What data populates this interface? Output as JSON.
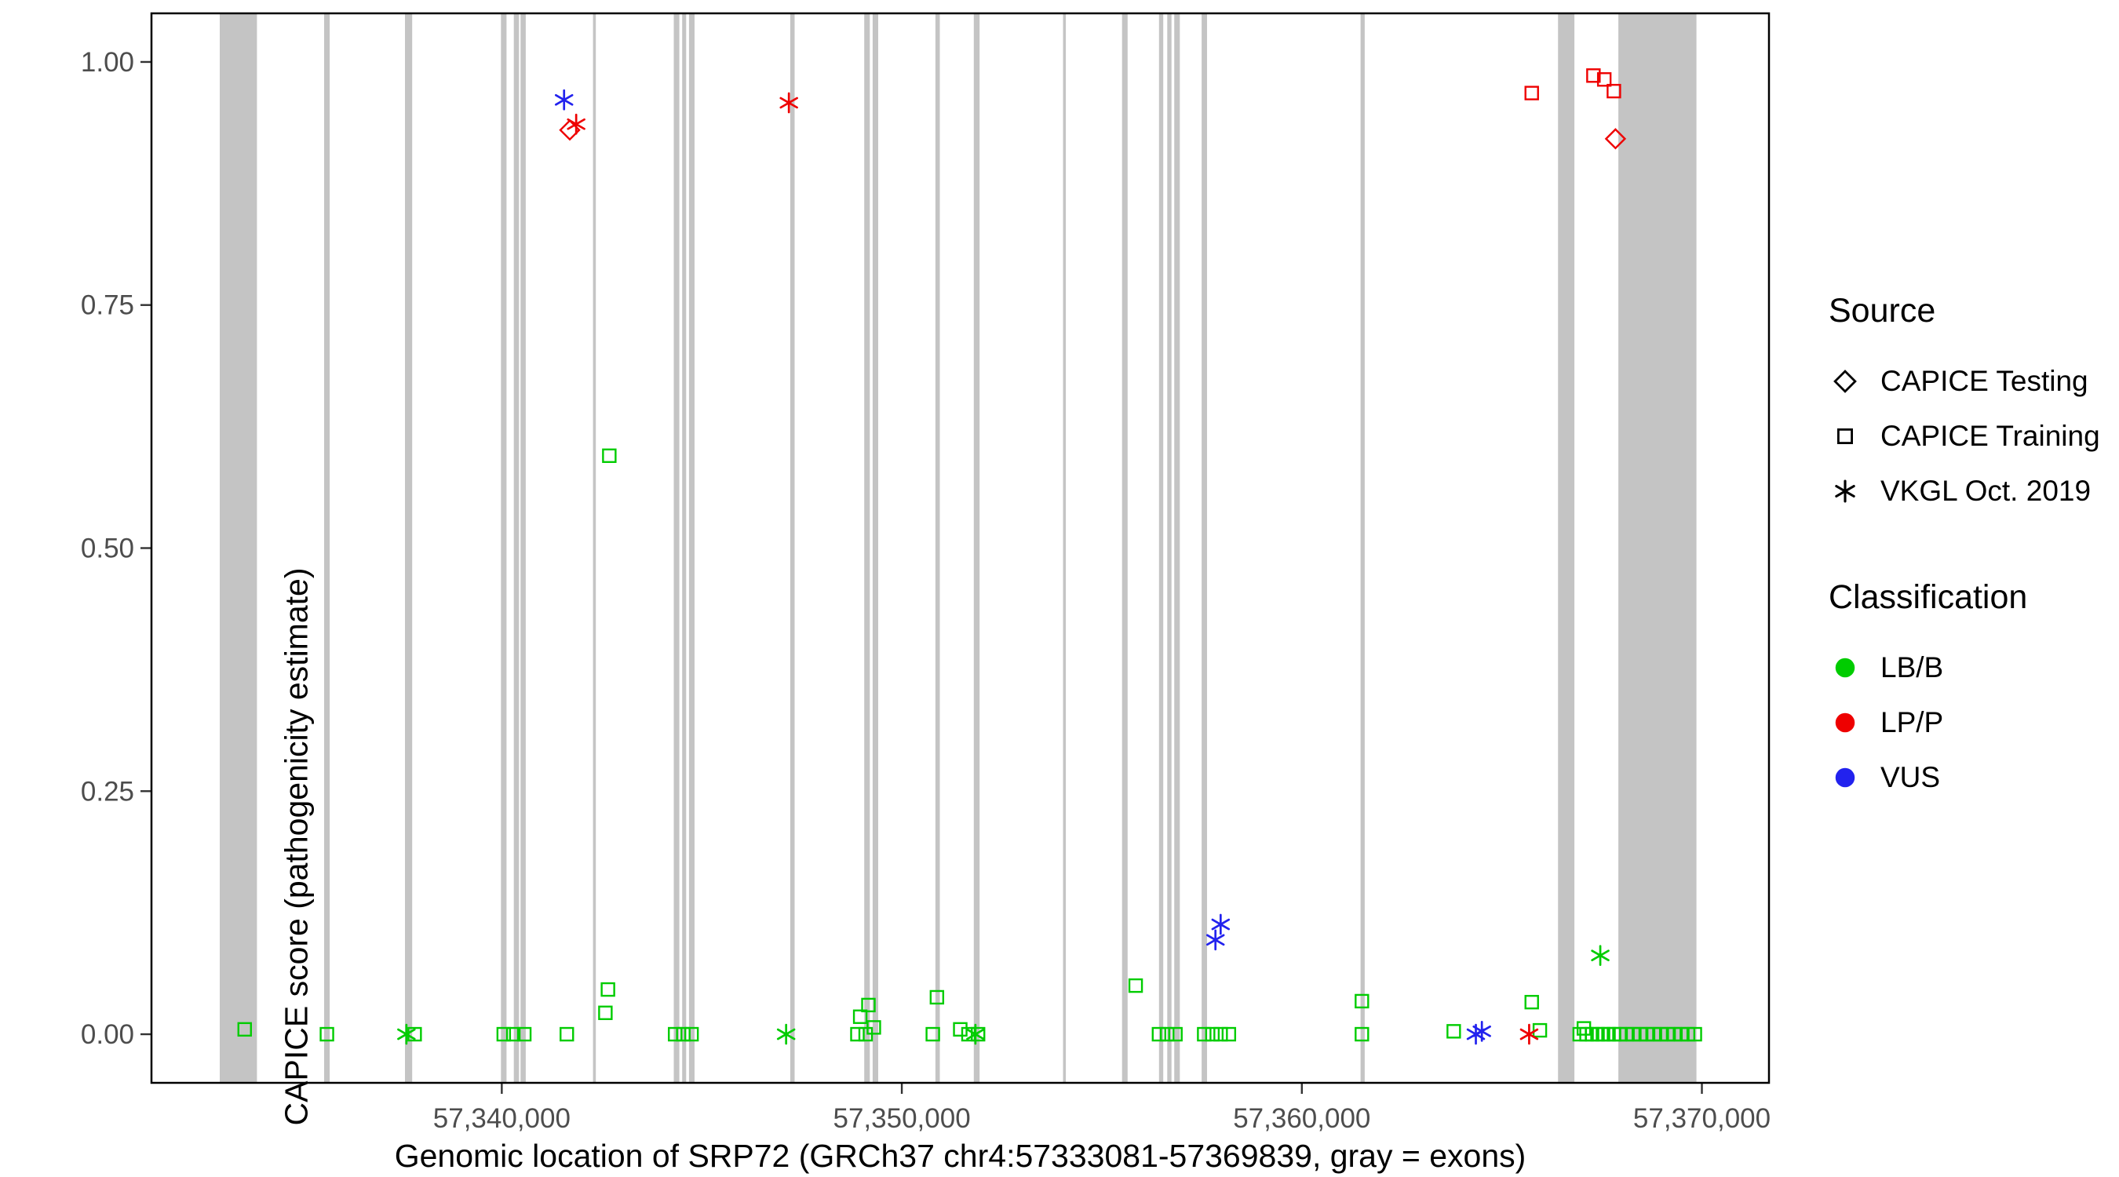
{
  "figure": {
    "background": "#ffffff",
    "legend": {
      "source_title": "Source",
      "source_items": [
        {
          "label": "CAPICE Testing",
          "shape": "diamond"
        },
        {
          "label": "CAPICE Training",
          "shape": "square"
        },
        {
          "label": "VKGL Oct. 2019",
          "shape": "asterisk"
        }
      ],
      "classification_title": "Classification",
      "classification_items": [
        {
          "label": "LB/B",
          "color": "#00cc00"
        },
        {
          "label": "LP/P",
          "color": "#ee0000"
        },
        {
          "label": "VUS",
          "color": "#2222ee"
        }
      ]
    }
  },
  "chart_data": {
    "type": "scatter",
    "title": "",
    "xlabel": "Genomic location of SRP72 (GRCh37 chr4:57333081-57369839, gray = exons)",
    "ylabel": "CAPICE score (pathogenicity estimate)",
    "x_domain": [
      57331243,
      57371677
    ],
    "y_domain": [
      -0.05,
      1.05
    ],
    "x_ticks": [
      {
        "value": 57340000,
        "label": "57,340,000"
      },
      {
        "value": 57350000,
        "label": "57,350,000"
      },
      {
        "value": 57360000,
        "label": "57,360,000"
      },
      {
        "value": 57370000,
        "label": "57,370,000"
      }
    ],
    "y_ticks": [
      {
        "value": 1.0,
        "label": "1.00"
      },
      {
        "value": 0.75,
        "label": "0.75"
      },
      {
        "value": 0.5,
        "label": "0.50"
      },
      {
        "value": 0.25,
        "label": "0.25"
      },
      {
        "value": 0.0,
        "label": "0.00"
      }
    ],
    "exon_color": "#c4c4c4",
    "grid": false,
    "legend_position": "right",
    "classification_colors": {
      "LB/B": "#00cc00",
      "LP/P": "#ee0000",
      "VUS": "#2222ee"
    },
    "source_shapes": {
      "CAPICE Testing": "diamond",
      "CAPICE Training": "square",
      "VKGL Oct. 2019": "asterisk"
    },
    "exons": [
      [
        57332950,
        57333880
      ],
      [
        57335560,
        57335700
      ],
      [
        57337580,
        57337760
      ],
      [
        57339980,
        57340120
      ],
      [
        57340300,
        57340430
      ],
      [
        57340470,
        57340600
      ],
      [
        57342280,
        57342350
      ],
      [
        57344300,
        57344440
      ],
      [
        57344510,
        57344610
      ],
      [
        57344680,
        57344820
      ],
      [
        57347210,
        57347320
      ],
      [
        57349060,
        57349200
      ],
      [
        57349270,
        57349410
      ],
      [
        57350840,
        57350950
      ],
      [
        57351800,
        57351945
      ],
      [
        57354030,
        57354100
      ],
      [
        57355505,
        57355645
      ],
      [
        57356430,
        57356535
      ],
      [
        57356635,
        57356740
      ],
      [
        57356810,
        57356950
      ],
      [
        57357495,
        57357630
      ],
      [
        57361467,
        57361570
      ],
      [
        57366404,
        57366815
      ],
      [
        57367912,
        57369865
      ]
    ],
    "points": [
      {
        "x": 57341557,
        "y": 0.961,
        "src": "VKGL Oct. 2019",
        "cls": "VUS"
      },
      {
        "x": 57341700,
        "y": 0.93,
        "src": "CAPICE Testing",
        "cls": "LP/P"
      },
      {
        "x": 57341860,
        "y": 0.936,
        "src": "VKGL Oct. 2019",
        "cls": "LP/P"
      },
      {
        "x": 57347177,
        "y": 0.958,
        "src": "VKGL Oct. 2019",
        "cls": "LP/P"
      },
      {
        "x": 57365747,
        "y": 0.968,
        "src": "CAPICE Training",
        "cls": "LP/P"
      },
      {
        "x": 57367289,
        "y": 0.986,
        "src": "CAPICE Training",
        "cls": "LP/P"
      },
      {
        "x": 57367560,
        "y": 0.982,
        "src": "CAPICE Training",
        "cls": "LP/P"
      },
      {
        "x": 57367800,
        "y": 0.97,
        "src": "CAPICE Training",
        "cls": "LP/P"
      },
      {
        "x": 57367840,
        "y": 0.921,
        "src": "CAPICE Testing",
        "cls": "LP/P"
      },
      {
        "x": 57342688,
        "y": 0.595,
        "src": "CAPICE Training",
        "cls": "LB/B"
      },
      {
        "x": 57357970,
        "y": 0.113,
        "src": "VKGL Oct. 2019",
        "cls": "VUS"
      },
      {
        "x": 57357840,
        "y": 0.097,
        "src": "VKGL Oct. 2019",
        "cls": "VUS"
      },
      {
        "x": 57367460,
        "y": 0.081,
        "src": "VKGL Oct. 2019",
        "cls": "LB/B"
      },
      {
        "x": 57355846,
        "y": 0.05,
        "src": "CAPICE Training",
        "cls": "LB/B"
      },
      {
        "x": 57342654,
        "y": 0.046,
        "src": "CAPICE Training",
        "cls": "LB/B"
      },
      {
        "x": 57342590,
        "y": 0.022,
        "src": "CAPICE Training",
        "cls": "LB/B"
      },
      {
        "x": 57349165,
        "y": 0.03,
        "src": "CAPICE Training",
        "cls": "LB/B"
      },
      {
        "x": 57348960,
        "y": 0.018,
        "src": "CAPICE Training",
        "cls": "LB/B"
      },
      {
        "x": 57350878,
        "y": 0.038,
        "src": "CAPICE Training",
        "cls": "LB/B"
      },
      {
        "x": 57361501,
        "y": 0.034,
        "src": "CAPICE Training",
        "cls": "LB/B"
      },
      {
        "x": 57365747,
        "y": 0.033,
        "src": "CAPICE Training",
        "cls": "LB/B"
      },
      {
        "x": 57333573,
        "y": 0.005,
        "src": "CAPICE Training",
        "cls": "LB/B"
      },
      {
        "x": 57349301,
        "y": 0.007,
        "src": "CAPICE Training",
        "cls": "LB/B"
      },
      {
        "x": 57351461,
        "y": 0.005,
        "src": "CAPICE Training",
        "cls": "LB/B"
      },
      {
        "x": 57363797,
        "y": 0.003,
        "src": "CAPICE Training",
        "cls": "LB/B"
      },
      {
        "x": 57367050,
        "y": 0.006,
        "src": "CAPICE Training",
        "cls": "LB/B"
      },
      {
        "x": 57335629,
        "y": 0.0,
        "src": "CAPICE Training",
        "cls": "LB/B"
      },
      {
        "x": 57337822,
        "y": 0.0,
        "src": "CAPICE Training",
        "cls": "LB/B"
      },
      {
        "x": 57340049,
        "y": 0.0,
        "src": "CAPICE Training",
        "cls": "LB/B"
      },
      {
        "x": 57340289,
        "y": 0.0,
        "src": "CAPICE Training",
        "cls": "LB/B"
      },
      {
        "x": 57340563,
        "y": 0.0,
        "src": "CAPICE Training",
        "cls": "LB/B"
      },
      {
        "x": 57341626,
        "y": 0.0,
        "src": "CAPICE Training",
        "cls": "LB/B"
      },
      {
        "x": 57344333,
        "y": 0.0,
        "src": "CAPICE Training",
        "cls": "LB/B"
      },
      {
        "x": 57344538,
        "y": 0.0,
        "src": "CAPICE Training",
        "cls": "LB/B"
      },
      {
        "x": 57344744,
        "y": 0.0,
        "src": "CAPICE Training",
        "cls": "LB/B"
      },
      {
        "x": 57348890,
        "y": 0.0,
        "src": "CAPICE Training",
        "cls": "LB/B"
      },
      {
        "x": 57349096,
        "y": 0.0,
        "src": "CAPICE Training",
        "cls": "LB/B"
      },
      {
        "x": 57350775,
        "y": 0.0,
        "src": "CAPICE Training",
        "cls": "LB/B"
      },
      {
        "x": 57351666,
        "y": 0.0,
        "src": "CAPICE Training",
        "cls": "LB/B"
      },
      {
        "x": 57351906,
        "y": 0.0,
        "src": "CAPICE Training",
        "cls": "LB/B"
      },
      {
        "x": 57356429,
        "y": 0.0,
        "src": "CAPICE Training",
        "cls": "LB/B"
      },
      {
        "x": 57356634,
        "y": 0.0,
        "src": "CAPICE Training",
        "cls": "LB/B"
      },
      {
        "x": 57356840,
        "y": 0.0,
        "src": "CAPICE Training",
        "cls": "LB/B"
      },
      {
        "x": 57357559,
        "y": 0.0,
        "src": "CAPICE Training",
        "cls": "LB/B"
      },
      {
        "x": 57357765,
        "y": 0.0,
        "src": "CAPICE Training",
        "cls": "LB/B"
      },
      {
        "x": 57357970,
        "y": 0.0,
        "src": "CAPICE Training",
        "cls": "LB/B"
      },
      {
        "x": 57358176,
        "y": 0.0,
        "src": "CAPICE Training",
        "cls": "LB/B"
      },
      {
        "x": 57361501,
        "y": 0.0,
        "src": "CAPICE Training",
        "cls": "LB/B"
      },
      {
        "x": 57365950,
        "y": 0.004,
        "src": "CAPICE Training",
        "cls": "LB/B"
      },
      {
        "x": 57366946,
        "y": 0.0,
        "src": "CAPICE Training",
        "cls": "LB/B"
      },
      {
        "x": 57367117,
        "y": 0.0,
        "src": "CAPICE Training",
        "cls": "LB/B"
      },
      {
        "x": 57367254,
        "y": 0.0,
        "src": "CAPICE Training",
        "cls": "LB/B"
      },
      {
        "x": 57367391,
        "y": 0.0,
        "src": "CAPICE Training",
        "cls": "LB/B"
      },
      {
        "x": 57367528,
        "y": 0.0,
        "src": "CAPICE Training",
        "cls": "LB/B"
      },
      {
        "x": 57367666,
        "y": 0.0,
        "src": "CAPICE Training",
        "cls": "LB/B"
      },
      {
        "x": 57367803,
        "y": 0.0,
        "src": "CAPICE Training",
        "cls": "LB/B"
      },
      {
        "x": 57367940,
        "y": 0.0,
        "src": "CAPICE Training",
        "cls": "LB/B"
      },
      {
        "x": 57368111,
        "y": 0.0,
        "src": "CAPICE Training",
        "cls": "LB/B"
      },
      {
        "x": 57368282,
        "y": 0.0,
        "src": "CAPICE Training",
        "cls": "LB/B"
      },
      {
        "x": 57368454,
        "y": 0.0,
        "src": "CAPICE Training",
        "cls": "LB/B"
      },
      {
        "x": 57368625,
        "y": 0.0,
        "src": "CAPICE Training",
        "cls": "LB/B"
      },
      {
        "x": 57368796,
        "y": 0.0,
        "src": "CAPICE Training",
        "cls": "LB/B"
      },
      {
        "x": 57368968,
        "y": 0.0,
        "src": "CAPICE Training",
        "cls": "LB/B"
      },
      {
        "x": 57369139,
        "y": 0.0,
        "src": "CAPICE Training",
        "cls": "LB/B"
      },
      {
        "x": 57369310,
        "y": 0.0,
        "src": "CAPICE Training",
        "cls": "LB/B"
      },
      {
        "x": 57369482,
        "y": 0.0,
        "src": "CAPICE Training",
        "cls": "LB/B"
      },
      {
        "x": 57369653,
        "y": 0.0,
        "src": "CAPICE Training",
        "cls": "LB/B"
      },
      {
        "x": 57369824,
        "y": 0.0,
        "src": "CAPICE Training",
        "cls": "LB/B"
      },
      {
        "x": 57337616,
        "y": 0.0,
        "src": "VKGL Oct. 2019",
        "cls": "LB/B"
      },
      {
        "x": 57347108,
        "y": 0.0,
        "src": "VKGL Oct. 2019",
        "cls": "LB/B"
      },
      {
        "x": 57351840,
        "y": 0.0,
        "src": "VKGL Oct. 2019",
        "cls": "LB/B"
      },
      {
        "x": 57364350,
        "y": 0.0,
        "src": "VKGL Oct. 2019",
        "cls": "VUS"
      },
      {
        "x": 57364500,
        "y": 0.003,
        "src": "VKGL Oct. 2019",
        "cls": "VUS"
      },
      {
        "x": 57365682,
        "y": 0.0,
        "src": "VKGL Oct. 2019",
        "cls": "LP/P"
      }
    ]
  }
}
